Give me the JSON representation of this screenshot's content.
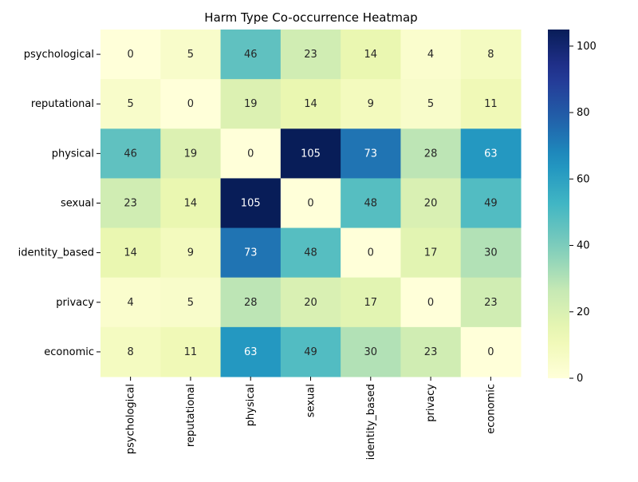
{
  "chart_data": {
    "type": "heatmap",
    "title": "Harm Type Co-occurrence Heatmap",
    "xlabel": "",
    "ylabel": "",
    "row_labels": [
      "psychological",
      "reputational",
      "physical",
      "sexual",
      "identity_based",
      "privacy",
      "economic"
    ],
    "col_labels": [
      "psychological",
      "reputational",
      "physical",
      "sexual",
      "identity_based",
      "privacy",
      "economic"
    ],
    "values": [
      [
        0,
        5,
        46,
        23,
        14,
        4,
        8
      ],
      [
        5,
        0,
        19,
        14,
        9,
        5,
        11
      ],
      [
        46,
        19,
        0,
        105,
        73,
        28,
        63
      ],
      [
        23,
        14,
        105,
        0,
        48,
        20,
        49
      ],
      [
        14,
        9,
        73,
        48,
        0,
        17,
        30
      ],
      [
        4,
        5,
        28,
        20,
        17,
        0,
        23
      ],
      [
        8,
        11,
        63,
        49,
        30,
        23,
        0
      ]
    ],
    "colormap": "YlGnBu",
    "vmin": 0,
    "vmax": 105,
    "colorbar_ticks": [
      0,
      20,
      40,
      60,
      80,
      100
    ],
    "annotations": true,
    "grid": false
  }
}
